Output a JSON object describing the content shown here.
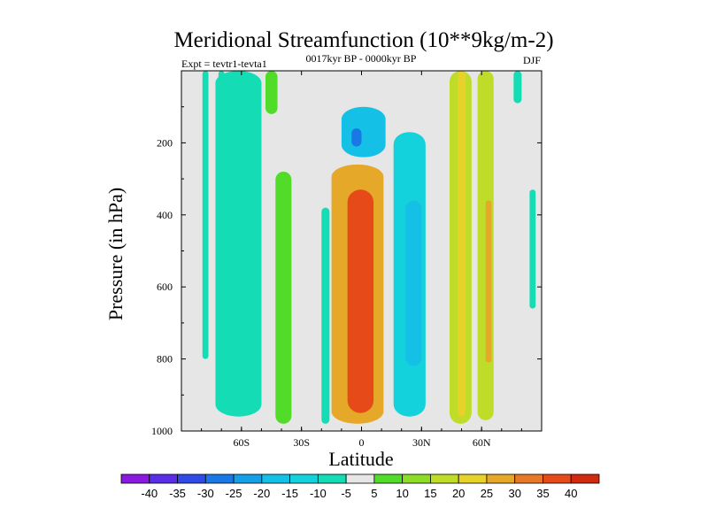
{
  "chart_data": {
    "type": "heatmap",
    "title": "Meridional Streamfunction (10**9kg/m-2)",
    "left_label": "Expt = tevtr1-tevta1",
    "center_label": "0017kyr BP - 0000kyr BP",
    "right_label": "DJF",
    "xlabel": "Latitude",
    "ylabel": "Pressure (in hPa)",
    "xlim": [
      -90,
      90
    ],
    "ylim": [
      1000,
      0
    ],
    "x_ticks": [
      {
        "value": -60,
        "label": "60S"
      },
      {
        "value": -30,
        "label": "30S"
      },
      {
        "value": 0,
        "label": "0"
      },
      {
        "value": 30,
        "label": "30N"
      },
      {
        "value": 60,
        "label": "60N"
      }
    ],
    "y_ticks": [
      {
        "value": 200,
        "label": "200"
      },
      {
        "value": 400,
        "label": "400"
      },
      {
        "value": 600,
        "label": "600"
      },
      {
        "value": 800,
        "label": "800"
      },
      {
        "value": 1000,
        "label": "1000"
      }
    ],
    "colorbar": {
      "labels": [
        "-40",
        "-35",
        "-30",
        "-25",
        "-20",
        "-15",
        "-10",
        "-5",
        "5",
        "10",
        "15",
        "20",
        "25",
        "30",
        "35",
        "40"
      ],
      "colors": [
        "#8a1ae0",
        "#5a2ee6",
        "#2f4ae6",
        "#1a78e6",
        "#14a0e6",
        "#14c0e6",
        "#14d2dc",
        "#14dcb4",
        "#e6e6e6",
        "#50dc28",
        "#8cdc28",
        "#bedc28",
        "#e6d228",
        "#e6a828",
        "#e67828",
        "#e64a18",
        "#d22a10"
      ]
    },
    "contours": [
      {
        "name": "sh-polar-cell-1",
        "value": -7,
        "lat": [
          -79.5,
          -76.5
        ],
        "p": [
          0,
          800
        ]
      },
      {
        "name": "sh-polar-cell-2",
        "value": -7,
        "lat": [
          -71.5,
          -68.5
        ],
        "p": [
          0,
          830
        ]
      },
      {
        "name": "sh-ferrel-cell",
        "value": -7,
        "lat": [
          -73,
          -50
        ],
        "p": [
          0,
          960
        ]
      },
      {
        "name": "sh-ferrel-core",
        "value": -9,
        "lat": [
          -64,
          -54
        ],
        "p": [
          100,
          620
        ]
      },
      {
        "name": "sh-subtropical-upper",
        "value": 7,
        "lat": [
          -48,
          -42
        ],
        "p": [
          0,
          120
        ]
      },
      {
        "name": "sh-subtropical-cell",
        "value": 7,
        "lat": [
          -43,
          -35
        ],
        "p": [
          280,
          980
        ]
      },
      {
        "name": "eq-trough-left",
        "value": -7,
        "lat": [
          -20,
          -16
        ],
        "p": [
          380,
          980
        ]
      },
      {
        "name": "eq-upper-negative",
        "value": -15,
        "lat": [
          -10,
          12
        ],
        "p": [
          100,
          240
        ]
      },
      {
        "name": "eq-upper-negative-core",
        "value": -25,
        "lat": [
          -5,
          0
        ],
        "p": [
          160,
          210
        ]
      },
      {
        "name": "hadley-cell",
        "value": 30,
        "lat": [
          -15,
          11
        ],
        "p": [
          260,
          980
        ]
      },
      {
        "name": "hadley-cell-core",
        "value": 40,
        "lat": [
          -7,
          6
        ],
        "p": [
          330,
          950
        ]
      },
      {
        "name": "nh-ferrel-cell",
        "value": -12,
        "lat": [
          16,
          32
        ],
        "p": [
          170,
          960
        ]
      },
      {
        "name": "nh-ferrel-core",
        "value": -15,
        "lat": [
          22,
          30
        ],
        "p": [
          360,
          820
        ]
      },
      {
        "name": "nh-cell-1",
        "value": 20,
        "lat": [
          44,
          55
        ],
        "p": [
          0,
          980
        ]
      },
      {
        "name": "nh-cell-1-core",
        "value": 25,
        "lat": [
          48,
          52
        ],
        "p": [
          0,
          960
        ]
      },
      {
        "name": "nh-cell-2",
        "value": 20,
        "lat": [
          58,
          66
        ],
        "p": [
          0,
          970
        ]
      },
      {
        "name": "nh-cell-2-core",
        "value": 30,
        "lat": [
          62,
          65
        ],
        "p": [
          360,
          810
        ]
      },
      {
        "name": "nh-polar-upper",
        "value": -7,
        "lat": [
          76,
          80
        ],
        "p": [
          0,
          90
        ]
      },
      {
        "name": "nh-polar-lower",
        "value": -7,
        "lat": [
          84,
          87
        ],
        "p": [
          330,
          660
        ]
      }
    ]
  }
}
